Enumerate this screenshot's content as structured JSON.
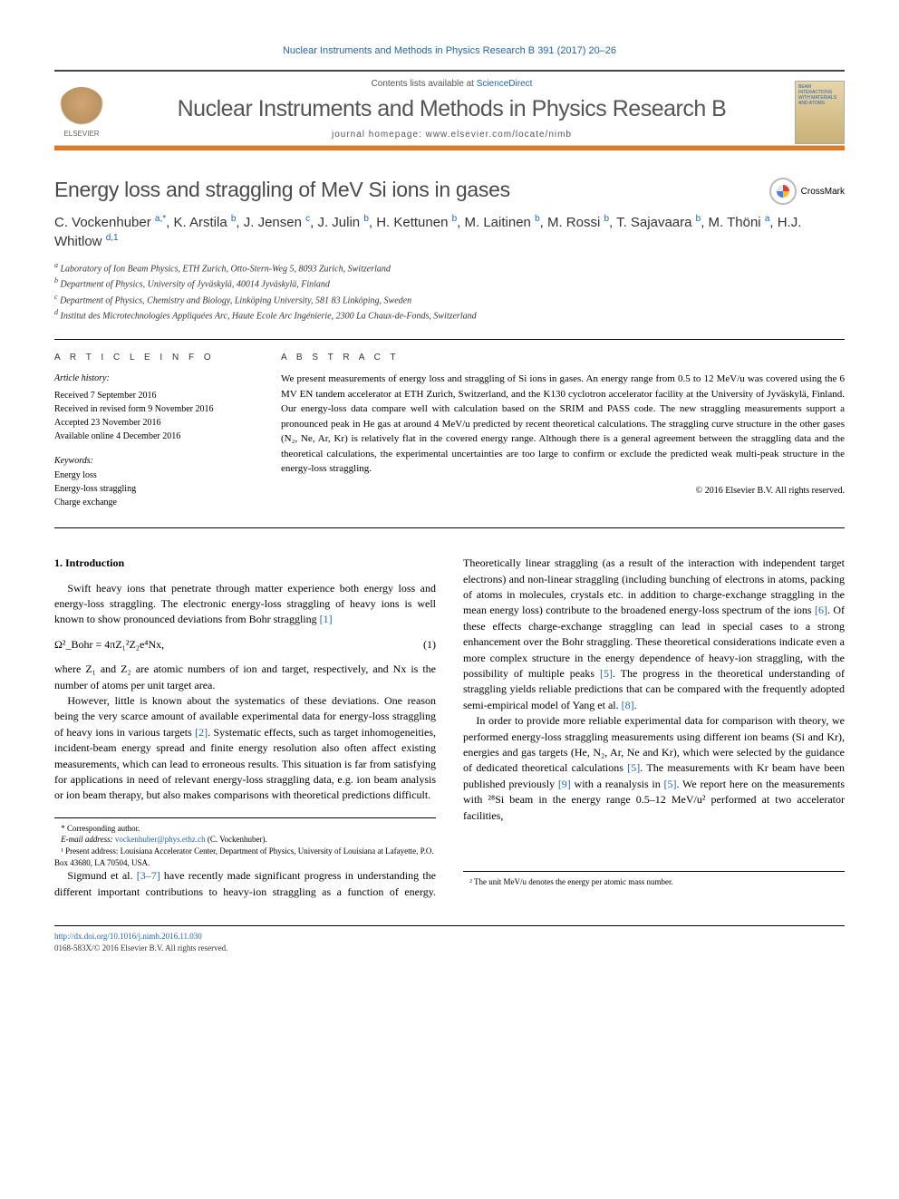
{
  "header": {
    "citation": "Nuclear Instruments and Methods in Physics Research B 391 (2017) 20–26",
    "contents_prefix": "Contents lists available at ",
    "sciencedirect": "ScienceDirect",
    "journal_name": "Nuclear Instruments and Methods in Physics Research B",
    "homepage_prefix": "journal homepage: ",
    "homepage_url": "www.elsevier.com/locate/nimb",
    "cover_text": "BEAM INTERACTIONS WITH MATERIALS AND ATOMS",
    "elsevier": "ELSEVIER"
  },
  "crossmark": "CrossMark",
  "title": "Energy loss and straggling of MeV Si ions in gases",
  "authors_html": "C. Vockenhuber <sup>a,*</sup>, K. Arstila <sup>b</sup>, J. Jensen <sup>c</sup>, J. Julin <sup>b</sup>, H. Kettunen <sup>b</sup>, M. Laitinen <sup>b</sup>, M. Rossi <sup>b</sup>, T. Sajavaara <sup>b</sup>, M. Thöni <sup>a</sup>, H.J. Whitlow <sup>d,1</sup>",
  "affiliations": [
    {
      "sup": "a",
      "text": "Laboratory of Ion Beam Physics, ETH Zurich, Otto-Stern-Weg 5, 8093 Zurich, Switzerland"
    },
    {
      "sup": "b",
      "text": "Department of Physics, University of Jyväskylä, 40014 Jyväskylä, Finland"
    },
    {
      "sup": "c",
      "text": "Department of Physics, Chemistry and Biology, Linköping University, 581 83 Linköping, Sweden"
    },
    {
      "sup": "d",
      "text": "Institut des Microtechnologies Appliquées Arc, Haute Ecole Arc Ingénierie, 2300 La Chaux-de-Fonds, Switzerland"
    }
  ],
  "meta": {
    "info_label": "A R T I C L E   I N F O",
    "abstract_label": "A B S T R A C T",
    "history_label": "Article history:",
    "history": [
      "Received 7 September 2016",
      "Received in revised form 9 November 2016",
      "Accepted 23 November 2016",
      "Available online 4 December 2016"
    ],
    "keywords_label": "Keywords:",
    "keywords": [
      "Energy loss",
      "Energy-loss straggling",
      "Charge exchange"
    ]
  },
  "abstract": "We present measurements of energy loss and straggling of Si ions in gases. An energy range from 0.5 to 12 MeV/u was covered using the 6 MV EN tandem accelerator at ETH Zurich, Switzerland, and the K130 cyclotron accelerator facility at the University of Jyväskylä, Finland. Our energy-loss data compare well with calculation based on the SRIM and PASS code. The new straggling measurements support a pronounced peak in He gas at around 4 MeV/u predicted by recent theoretical calculations. The straggling curve structure in the other gases (N₂, Ne, Ar, Kr) is relatively flat in the covered energy range. Although there is a general agreement between the straggling data and the theoretical calculations, the experimental uncertainties are too large to confirm or exclude the predicted weak multi-peak structure in the energy-loss straggling.",
  "copyright_abstract": "© 2016 Elsevier B.V. All rights reserved.",
  "body": {
    "section1_heading": "1. Introduction",
    "p1": "Swift heavy ions that penetrate through matter experience both energy loss and energy-loss straggling. The electronic energy-loss straggling of heavy ions is well known to show pronounced deviations from Bohr straggling ",
    "ref1": "[1]",
    "eq1": "Ω²_Bohr = 4πZ₁²Z₂e⁴Nx,",
    "eq1_num": "(1)",
    "p2": "where Z₁ and Z₂ are atomic numbers of ion and target, respectively, and Nx is the number of atoms per unit target area.",
    "p3a": "However, little is known about the systematics of these deviations. One reason being the very scarce amount of available experimental data for energy-loss straggling of heavy ions in various targets ",
    "ref2": "[2]",
    "p3b": ". Systematic effects, such as target inhomogeneities, incident-beam energy spread and finite energy resolution also often affect existing measurements, which can lead to erroneous results. This situation is far from satisfying for applications in need of relevant energy-loss straggling data, e.g. ion beam analysis or ion beam therapy, but also makes comparisons with theoretical predictions difficult.",
    "p4a": "Sigmund et al. ",
    "ref37": "[3–7]",
    "p4b": " have recently made significant progress in understanding the different important contributions to heavy-ion straggling as a function of energy. Theoretically linear straggling (as a result of the interaction with independent target electrons) and non-linear straggling (including bunching of electrons in atoms, packing of atoms in molecules, crystals etc. in addition to charge-exchange straggling in the mean energy loss) contribute to the broadened energy-loss spectrum of the ions ",
    "ref6": "[6]",
    "p4c": ". Of these effects charge-exchange straggling can lead in special cases to a strong enhancement over the Bohr straggling. These theoretical considerations indicate even a more complex structure in the energy dependence of heavy-ion straggling, with the possibility of multiple peaks ",
    "ref5a": "[5]",
    "p4d": ". The progress in the theoretical understanding of straggling yields reliable predictions that can be compared with the frequently adopted semi-empirical model of Yang et al. ",
    "ref8": "[8]",
    "p4e": ".",
    "p5a": "In order to provide more reliable experimental data for comparison with theory, we performed energy-loss straggling measurements using different ion beams (Si and Kr), energies and gas targets (He, N₂, Ar, Ne and Kr), which were selected by the guidance of dedicated theoretical calculations ",
    "ref5b": "[5]",
    "p5b": ". The measurements with Kr beam have been published previously ",
    "ref9": "[9]",
    "p5c": " with a reanalysis in ",
    "ref5c": "[5]",
    "p5d": ". We report here on the measurements with ²⁸Si beam in the energy range 0.5–12 MeV/u² performed at two accelerator facilities,"
  },
  "footnotes": {
    "corr": "* Corresponding author.",
    "email_label": "E-mail address: ",
    "email": "vockenhuber@phys.ethz.ch",
    "email_suffix": " (C. Vockenhuber).",
    "fn1": "¹ Present address: Louisiana Accelerator Center, Department of Physics, University of Louisiana at Lafayette, P.O. Box 43680, LA 70504, USA.",
    "fn2": "² The unit MeV/u denotes the energy per atomic mass number."
  },
  "footer": {
    "doi": "http://dx.doi.org/10.1016/j.nimb.2016.11.030",
    "issn_line": "0168-583X/© 2016 Elsevier B.V. All rights reserved."
  },
  "colors": {
    "link": "#2265b0",
    "orange": "#e67817",
    "title_gray": "#4a4a4a"
  }
}
